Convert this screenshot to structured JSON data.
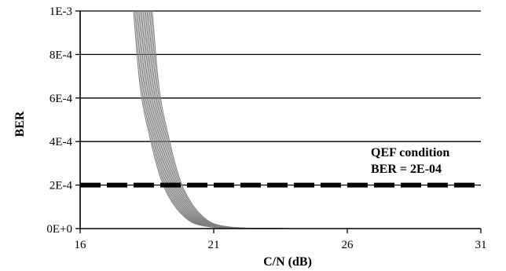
{
  "chart_data": {
    "type": "line",
    "title": "",
    "xlabel": "C/N (dB)",
    "ylabel": "BER",
    "xlim": [
      16,
      31
    ],
    "ylim": [
      0,
      0.001
    ],
    "x_ticks": [
      16,
      21,
      26,
      31
    ],
    "x_tick_labels": [
      "16",
      "21",
      "26",
      "31"
    ],
    "y_ticks": [
      0,
      0.0002,
      0.0004,
      0.0006,
      0.0008,
      0.001
    ],
    "y_tick_labels": [
      "0E+0",
      "2E-4",
      "4E-4",
      "6E-4",
      "8E-4",
      "1E-3"
    ],
    "grid": "horizontal",
    "legend": "none",
    "annotation": {
      "lines": [
        "QEF condition",
        "BER = 2E-04"
      ]
    },
    "threshold": {
      "y": 0.0002,
      "style": "dashed",
      "color": "#000000"
    },
    "series_color": "#808080",
    "curve_shape": {
      "points": [
        [
          -0.3,
          0.00108
        ],
        [
          0,
          0.00065
        ],
        [
          0.4,
          0.0004
        ],
        [
          0.8,
          0.00022
        ],
        [
          1.2,
          0.00012
        ],
        [
          1.6,
          6e-05
        ],
        [
          2.0,
          2.5e-05
        ],
        [
          2.6,
          8e-06
        ],
        [
          3.5,
          1e-06
        ],
        [
          5.0,
          0.0
        ]
      ]
    },
    "series": [
      {
        "offset": 0.0
      },
      {
        "offset": 0.05
      },
      {
        "offset": 0.1
      },
      {
        "offset": 0.15
      },
      {
        "offset": 0.2
      },
      {
        "offset": 0.25
      },
      {
        "offset": 0.3
      },
      {
        "offset": 0.35
      },
      {
        "offset": 0.4
      },
      {
        "offset": 0.45
      },
      {
        "offset": 0.5
      },
      {
        "offset": 0.55
      },
      {
        "offset": 0.6
      },
      {
        "offset": 0.65
      },
      {
        "offset": 0.7
      }
    ],
    "series_base_x": 18.25
  }
}
